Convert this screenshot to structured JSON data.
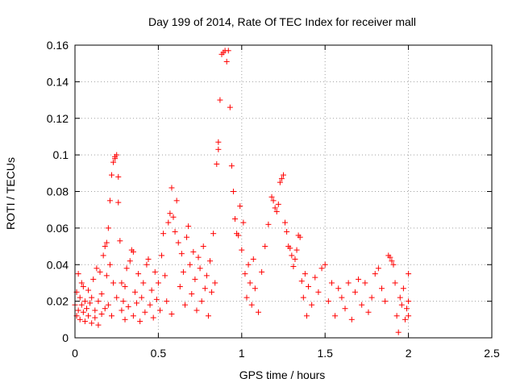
{
  "chart_data": {
    "type": "scatter",
    "title": "Day 199 of 2014, Rate Of TEC Index for receiver mall",
    "xlabel": "GPS time / hours",
    "ylabel": "ROTI / TECUs",
    "xlim": [
      0,
      2.5
    ],
    "ylim": [
      0,
      0.16
    ],
    "x_ticks": [
      "0",
      "0.5",
      "1",
      "1.5",
      "2",
      "2.5"
    ],
    "y_ticks": [
      "0",
      "0.02",
      "0.04",
      "0.06",
      "0.08",
      "0.1",
      "0.12",
      "0.14",
      "0.16"
    ],
    "grid": true,
    "marker": "+",
    "marker_color": "#ff0000",
    "series": [
      {
        "name": "ROTI",
        "points": [
          [
            0.0,
            0.018
          ],
          [
            0.01,
            0.012
          ],
          [
            0.01,
            0.025
          ],
          [
            0.02,
            0.035
          ],
          [
            0.02,
            0.015
          ],
          [
            0.03,
            0.022
          ],
          [
            0.03,
            0.01
          ],
          [
            0.04,
            0.03
          ],
          [
            0.04,
            0.018
          ],
          [
            0.05,
            0.014
          ],
          [
            0.05,
            0.028
          ],
          [
            0.06,
            0.02
          ],
          [
            0.06,
            0.009
          ],
          [
            0.07,
            0.016
          ],
          [
            0.08,
            0.026
          ],
          [
            0.08,
            0.012
          ],
          [
            0.09,
            0.019
          ],
          [
            0.1,
            0.008
          ],
          [
            0.1,
            0.022
          ],
          [
            0.11,
            0.032
          ],
          [
            0.12,
            0.015
          ],
          [
            0.12,
            0.011
          ],
          [
            0.13,
            0.038
          ],
          [
            0.14,
            0.02
          ],
          [
            0.14,
            0.007
          ],
          [
            0.15,
            0.036
          ],
          [
            0.16,
            0.013
          ],
          [
            0.16,
            0.024
          ],
          [
            0.17,
            0.045
          ],
          [
            0.18,
            0.05
          ],
          [
            0.18,
            0.016
          ],
          [
            0.19,
            0.052
          ],
          [
            0.19,
            0.034
          ],
          [
            0.2,
            0.06
          ],
          [
            0.2,
            0.018
          ],
          [
            0.21,
            0.04
          ],
          [
            0.21,
            0.075
          ],
          [
            0.22,
            0.089
          ],
          [
            0.22,
            0.012
          ],
          [
            0.23,
            0.096
          ],
          [
            0.23,
            0.03
          ],
          [
            0.24,
            0.099
          ],
          [
            0.24,
            0.098
          ],
          [
            0.25,
            0.1
          ],
          [
            0.25,
            0.022
          ],
          [
            0.26,
            0.088
          ],
          [
            0.26,
            0.074
          ],
          [
            0.27,
            0.053
          ],
          [
            0.28,
            0.015
          ],
          [
            0.28,
            0.03
          ],
          [
            0.29,
            0.02
          ],
          [
            0.3,
            0.028
          ],
          [
            0.3,
            0.01
          ],
          [
            0.31,
            0.038
          ],
          [
            0.32,
            0.017
          ],
          [
            0.33,
            0.042
          ],
          [
            0.34,
            0.048
          ],
          [
            0.35,
            0.047
          ],
          [
            0.35,
            0.012
          ],
          [
            0.36,
            0.025
          ],
          [
            0.37,
            0.019
          ],
          [
            0.38,
            0.035
          ],
          [
            0.39,
            0.009
          ],
          [
            0.4,
            0.022
          ],
          [
            0.41,
            0.03
          ],
          [
            0.42,
            0.014
          ],
          [
            0.43,
            0.04
          ],
          [
            0.44,
            0.043
          ],
          [
            0.45,
            0.018
          ],
          [
            0.46,
            0.026
          ],
          [
            0.47,
            0.011
          ],
          [
            0.48,
            0.036
          ],
          [
            0.49,
            0.021
          ],
          [
            0.5,
            0.03
          ],
          [
            0.51,
            0.015
          ],
          [
            0.52,
            0.045
          ],
          [
            0.53,
            0.057
          ],
          [
            0.54,
            0.034
          ],
          [
            0.55,
            0.02
          ],
          [
            0.56,
            0.063
          ],
          [
            0.57,
            0.068
          ],
          [
            0.58,
            0.082
          ],
          [
            0.58,
            0.013
          ],
          [
            0.59,
            0.066
          ],
          [
            0.6,
            0.058
          ],
          [
            0.61,
            0.075
          ],
          [
            0.62,
            0.052
          ],
          [
            0.63,
            0.028
          ],
          [
            0.64,
            0.046
          ],
          [
            0.65,
            0.036
          ],
          [
            0.66,
            0.018
          ],
          [
            0.67,
            0.055
          ],
          [
            0.68,
            0.061
          ],
          [
            0.69,
            0.04
          ],
          [
            0.7,
            0.024
          ],
          [
            0.71,
            0.047
          ],
          [
            0.72,
            0.032
          ],
          [
            0.73,
            0.015
          ],
          [
            0.74,
            0.044
          ],
          [
            0.75,
            0.038
          ],
          [
            0.76,
            0.02
          ],
          [
            0.77,
            0.05
          ],
          [
            0.78,
            0.027
          ],
          [
            0.79,
            0.034
          ],
          [
            0.8,
            0.012
          ],
          [
            0.81,
            0.042
          ],
          [
            0.82,
            0.025
          ],
          [
            0.83,
            0.057
          ],
          [
            0.84,
            0.03
          ],
          [
            0.85,
            0.095
          ],
          [
            0.86,
            0.107
          ],
          [
            0.86,
            0.103
          ],
          [
            0.87,
            0.13
          ],
          [
            0.88,
            0.155
          ],
          [
            0.89,
            0.156
          ],
          [
            0.9,
            0.157
          ],
          [
            0.91,
            0.151
          ],
          [
            0.92,
            0.157
          ],
          [
            0.93,
            0.126
          ],
          [
            0.94,
            0.094
          ],
          [
            0.95,
            0.08
          ],
          [
            0.96,
            0.065
          ],
          [
            0.97,
            0.057
          ],
          [
            0.98,
            0.056
          ],
          [
            0.99,
            0.072
          ],
          [
            1.0,
            0.048
          ],
          [
            1.01,
            0.063
          ],
          [
            1.02,
            0.035
          ],
          [
            1.03,
            0.022
          ],
          [
            1.04,
            0.04
          ],
          [
            1.05,
            0.03
          ],
          [
            1.06,
            0.018
          ],
          [
            1.07,
            0.043
          ],
          [
            1.08,
            0.027
          ],
          [
            1.1,
            0.014
          ],
          [
            1.12,
            0.036
          ],
          [
            1.14,
            0.05
          ],
          [
            1.16,
            0.062
          ],
          [
            1.18,
            0.077
          ],
          [
            1.19,
            0.075
          ],
          [
            1.2,
            0.071
          ],
          [
            1.21,
            0.069
          ],
          [
            1.22,
            0.073
          ],
          [
            1.23,
            0.085
          ],
          [
            1.24,
            0.087
          ],
          [
            1.25,
            0.089
          ],
          [
            1.26,
            0.063
          ],
          [
            1.27,
            0.058
          ],
          [
            1.28,
            0.05
          ],
          [
            1.29,
            0.049
          ],
          [
            1.3,
            0.045
          ],
          [
            1.31,
            0.039
          ],
          [
            1.32,
            0.043
          ],
          [
            1.33,
            0.048
          ],
          [
            1.34,
            0.056
          ],
          [
            1.35,
            0.055
          ],
          [
            1.36,
            0.031
          ],
          [
            1.37,
            0.022
          ],
          [
            1.38,
            0.035
          ],
          [
            1.39,
            0.012
          ],
          [
            1.4,
            0.028
          ],
          [
            1.42,
            0.018
          ],
          [
            1.44,
            0.033
          ],
          [
            1.46,
            0.025
          ],
          [
            1.48,
            0.038
          ],
          [
            1.5,
            0.04
          ],
          [
            1.52,
            0.02
          ],
          [
            1.54,
            0.03
          ],
          [
            1.56,
            0.012
          ],
          [
            1.58,
            0.027
          ],
          [
            1.6,
            0.022
          ],
          [
            1.62,
            0.016
          ],
          [
            1.64,
            0.03
          ],
          [
            1.66,
            0.01
          ],
          [
            1.68,
            0.025
          ],
          [
            1.7,
            0.032
          ],
          [
            1.72,
            0.018
          ],
          [
            1.74,
            0.03
          ],
          [
            1.76,
            0.014
          ],
          [
            1.78,
            0.022
          ],
          [
            1.8,
            0.035
          ],
          [
            1.82,
            0.038
          ],
          [
            1.84,
            0.027
          ],
          [
            1.86,
            0.02
          ],
          [
            1.88,
            0.045
          ],
          [
            1.89,
            0.044
          ],
          [
            1.9,
            0.042
          ],
          [
            1.91,
            0.04
          ],
          [
            1.92,
            0.03
          ],
          [
            1.93,
            0.012
          ],
          [
            1.94,
            0.003
          ],
          [
            1.95,
            0.022
          ],
          [
            1.96,
            0.018
          ],
          [
            1.97,
            0.027
          ],
          [
            1.98,
            0.01
          ],
          [
            1.99,
            0.016
          ],
          [
            2.0,
            0.035
          ],
          [
            2.0,
            0.02
          ],
          [
            2.0,
            0.012
          ]
        ]
      }
    ]
  }
}
